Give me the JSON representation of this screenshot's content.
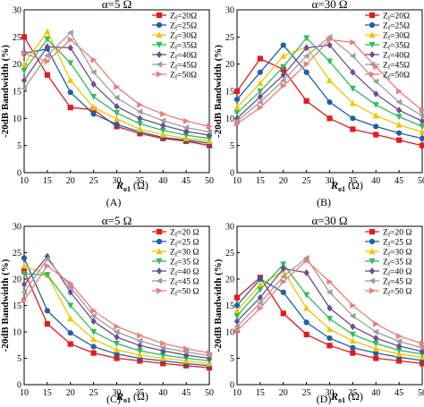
{
  "figure": {
    "y_label": "-20dB Bandwidth (%)",
    "x_label_main": "R",
    "x_label_sub": "o1",
    "x_label_unit": " (Ω)",
    "panel_labels": [
      "(A)",
      "(B)",
      "(C)",
      "(D)"
    ]
  },
  "chart_data": [
    {
      "type": "line",
      "panel": "(A)",
      "title": "α=5 Ω",
      "x": [
        10,
        15,
        20,
        25,
        30,
        35,
        40,
        45,
        50
      ],
      "xlim": [
        10,
        50
      ],
      "ylim": [
        0,
        30
      ],
      "xticks": [
        10,
        15,
        20,
        25,
        30,
        35,
        40,
        45,
        50
      ],
      "yticks": [
        0,
        5,
        10,
        15,
        20,
        25,
        30
      ],
      "legend_position": "top-right",
      "series": [
        {
          "name": "Zf=20Ω",
          "values": [
            25.0,
            18.0,
            12.0,
            11.6,
            8.5,
            7.2,
            6.3,
            5.8,
            5.0
          ]
        },
        {
          "name": "Zf=25Ω",
          "values": [
            22.0,
            22.8,
            14.8,
            10.8,
            8.9,
            7.5,
            6.5,
            6.0,
            5.4
          ]
        },
        {
          "name": "Zf=30Ω",
          "values": [
            20.0,
            26.0,
            17.0,
            12.0,
            9.9,
            8.0,
            7.0,
            6.3,
            5.8
          ]
        },
        {
          "name": "Zf=35Ω",
          "values": [
            18.8,
            24.6,
            20.2,
            14.0,
            11.0,
            9.0,
            7.8,
            6.9,
            6.3
          ]
        },
        {
          "name": "Zf=40Ω",
          "values": [
            17.0,
            23.2,
            23.0,
            16.3,
            12.2,
            10.0,
            8.7,
            7.6,
            6.9
          ]
        },
        {
          "name": "Zf=45Ω",
          "values": [
            15.5,
            21.6,
            25.8,
            18.5,
            13.8,
            11.2,
            9.6,
            8.3,
            7.5
          ]
        },
        {
          "name": "Zf=50Ω",
          "values": [
            22.0,
            20.5,
            24.5,
            20.8,
            15.8,
            12.5,
            10.8,
            9.5,
            8.5
          ]
        }
      ]
    },
    {
      "type": "line",
      "panel": "(B)",
      "title": "α=30 Ω",
      "x": [
        10,
        15,
        20,
        25,
        30,
        35,
        40,
        45,
        50
      ],
      "xlim": [
        10,
        50
      ],
      "ylim": [
        0,
        30
      ],
      "xticks": [
        10,
        15,
        20,
        25,
        30,
        35,
        40,
        45,
        50
      ],
      "yticks": [
        0,
        5,
        10,
        15,
        20,
        25,
        30
      ],
      "legend_position": "top-right",
      "series": [
        {
          "name": "Zf=20Ω",
          "values": [
            15.0,
            21.0,
            19.0,
            13.2,
            10.0,
            8.0,
            7.0,
            6.0,
            5.0
          ]
        },
        {
          "name": "Zf=25Ω",
          "values": [
            13.5,
            18.5,
            23.5,
            18.5,
            13.0,
            10.0,
            8.5,
            7.3,
            6.3
          ]
        },
        {
          "name": "Zf=30Ω",
          "values": [
            12.0,
            16.5,
            21.5,
            23.2,
            17.0,
            12.8,
            10.5,
            8.8,
            7.5
          ]
        },
        {
          "name": "Zf=35Ω",
          "values": [
            11.0,
            15.0,
            19.5,
            24.8,
            20.5,
            15.5,
            12.5,
            10.3,
            8.5
          ]
        },
        {
          "name": "Zf=40Ω",
          "values": [
            10.0,
            14.0,
            18.0,
            23.0,
            23.5,
            18.5,
            14.5,
            11.5,
            9.5
          ]
        },
        {
          "name": "Zf=45Ω",
          "values": [
            9.5,
            13.0,
            17.0,
            21.5,
            25.0,
            21.5,
            16.8,
            13.0,
            10.5
          ]
        },
        {
          "name": "Zf=50Ω",
          "values": [
            9.0,
            12.0,
            16.0,
            20.0,
            24.5,
            24.0,
            19.5,
            15.0,
            11.5
          ]
        }
      ]
    },
    {
      "type": "line",
      "panel": "(C)",
      "title": "α=5 Ω",
      "x": [
        10,
        15,
        20,
        25,
        30,
        35,
        40,
        45,
        50
      ],
      "xlim": [
        10,
        50
      ],
      "ylim": [
        0,
        30
      ],
      "xticks": [
        10,
        15,
        20,
        25,
        30,
        35,
        40,
        45,
        50
      ],
      "yticks": [
        0,
        5,
        10,
        15,
        20,
        25,
        30
      ],
      "legend_position": "top-right",
      "series": [
        {
          "name": "Zf=20 Ω",
          "values": [
            21.5,
            11.5,
            7.7,
            6.0,
            5.0,
            4.5,
            4.0,
            3.6,
            3.2
          ]
        },
        {
          "name": "Zf=25 Ω",
          "values": [
            24.0,
            14.0,
            9.8,
            7.2,
            5.8,
            5.0,
            4.5,
            4.0,
            3.6
          ]
        },
        {
          "name": "Zf=30 Ω",
          "values": [
            22.5,
            20.8,
            12.5,
            8.6,
            6.6,
            5.6,
            5.0,
            4.5,
            4.0
          ]
        },
        {
          "name": "Zf=35 Ω",
          "values": [
            21.0,
            20.8,
            15.0,
            10.0,
            7.8,
            6.4,
            5.6,
            5.0,
            4.5
          ]
        },
        {
          "name": "Zf=40 Ω",
          "values": [
            19.0,
            24.3,
            17.5,
            12.0,
            9.0,
            7.4,
            6.4,
            5.6,
            5.0
          ]
        },
        {
          "name": "Zf=45 Ω",
          "values": [
            17.5,
            23.8,
            18.5,
            13.0,
            10.0,
            8.3,
            7.0,
            6.2,
            5.5
          ]
        },
        {
          "name": "Zf=50 Ω",
          "values": [
            16.0,
            22.5,
            19.2,
            14.0,
            11.0,
            9.3,
            7.8,
            6.8,
            6.0
          ]
        }
      ]
    },
    {
      "type": "line",
      "panel": "(D)",
      "title": "α=30 Ω",
      "x": [
        10,
        15,
        20,
        25,
        30,
        35,
        40,
        45,
        50
      ],
      "xlim": [
        10,
        50
      ],
      "ylim": [
        0,
        30
      ],
      "xticks": [
        10,
        15,
        20,
        25,
        30,
        35,
        40,
        45,
        50
      ],
      "yticks": [
        0,
        5,
        10,
        15,
        20,
        25,
        30
      ],
      "legend_position": "top-right",
      "series": [
        {
          "name": "Zf=20 Ω",
          "values": [
            16.5,
            20.3,
            13.5,
            9.5,
            7.4,
            6.0,
            5.0,
            4.5,
            4.0
          ]
        },
        {
          "name": "Zf=25 Ω",
          "values": [
            15.0,
            20.0,
            17.5,
            11.8,
            8.8,
            7.0,
            6.0,
            5.2,
            4.6
          ]
        },
        {
          "name": "Zf=30 Ω",
          "values": [
            14.0,
            19.0,
            21.5,
            14.5,
            10.5,
            8.3,
            6.8,
            5.8,
            5.2
          ]
        },
        {
          "name": "Zf=35 Ω",
          "values": [
            13.0,
            18.0,
            22.8,
            17.0,
            12.5,
            9.5,
            7.8,
            6.5,
            5.8
          ]
        },
        {
          "name": "Zf=40 Ω",
          "values": [
            12.0,
            16.5,
            22.0,
            21.2,
            14.5,
            11.0,
            8.8,
            7.3,
            6.3
          ]
        },
        {
          "name": "Zf=45 Ω",
          "values": [
            11.0,
            15.5,
            20.5,
            24.0,
            17.5,
            13.0,
            10.0,
            8.2,
            7.0
          ]
        },
        {
          "name": "Zf=50 Ω",
          "values": [
            10.2,
            14.5,
            19.5,
            23.5,
            19.5,
            15.0,
            11.5,
            9.2,
            7.8
          ]
        }
      ]
    }
  ],
  "series_styles": [
    {
      "color": "#e41a1c",
      "marker": "square"
    },
    {
      "color": "#1f5fa8",
      "marker": "circle"
    },
    {
      "color": "#f2c500",
      "marker": "triangle-up"
    },
    {
      "color": "#2ebd59",
      "marker": "triangle-down"
    },
    {
      "color": "#6a4c93",
      "marker": "diamond"
    },
    {
      "color": "#9e9e9e",
      "marker": "triangle-left"
    },
    {
      "color": "#f07a7a",
      "marker": "triangle-right"
    }
  ]
}
